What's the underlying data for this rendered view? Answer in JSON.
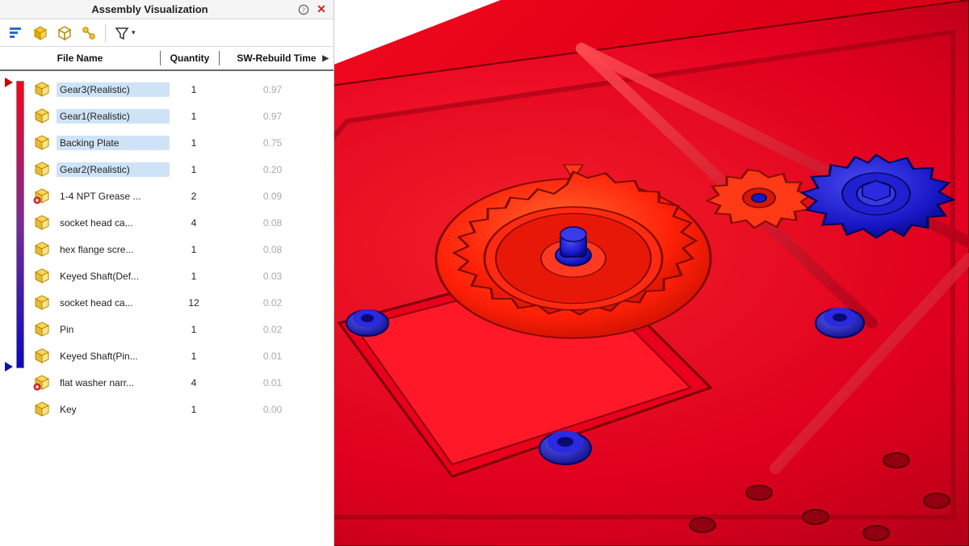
{
  "panel": {
    "title": "Assembly Visualization",
    "help_tooltip": "Help",
    "close_tooltip": "Close"
  },
  "toolbar": {
    "buttons": [
      {
        "name": "nested-view",
        "depicts": "stacked-bars"
      },
      {
        "name": "flat-view",
        "depicts": "cube"
      },
      {
        "name": "grouped-view",
        "depicts": "cube-outline"
      },
      {
        "name": "performance-view",
        "depicts": "link-cubes"
      }
    ],
    "filter_label": "Filter"
  },
  "columns": {
    "name": "File Name",
    "qty": "Quantity",
    "time": "SW-Rebuild Time",
    "sort_indicator": "▶"
  },
  "gradient": {
    "top_color": "#ff0018",
    "mid_color": "#7a2a9c",
    "bottom_color": "#0808c8",
    "marker_top_color": "#cc0000",
    "marker_bottom_color": "#1010aa"
  },
  "rows": [
    {
      "icon": "part",
      "name": "Gear3(Realistic)",
      "qty": "1",
      "time": "0.97",
      "selected": true
    },
    {
      "icon": "part",
      "name": "Gear1(Realistic)",
      "qty": "1",
      "time": "0.97",
      "selected": true
    },
    {
      "icon": "part",
      "name": "Backing Plate",
      "qty": "1",
      "time": "0.75",
      "selected": true
    },
    {
      "icon": "part",
      "name": "Gear2(Realistic)",
      "qty": "1",
      "time": "0.20",
      "selected": true
    },
    {
      "icon": "tbpart",
      "name": "1-4 NPT Grease ...",
      "qty": "2",
      "time": "0.09",
      "selected": false
    },
    {
      "icon": "part",
      "name": "socket head ca...",
      "qty": "4",
      "time": "0.08",
      "selected": false
    },
    {
      "icon": "part",
      "name": "hex flange scre...",
      "qty": "1",
      "time": "0.08",
      "selected": false
    },
    {
      "icon": "part",
      "name": "Keyed Shaft(Def...",
      "qty": "1",
      "time": "0.03",
      "selected": false
    },
    {
      "icon": "part",
      "name": "socket head ca...",
      "qty": "12",
      "time": "0.02",
      "selected": false
    },
    {
      "icon": "part",
      "name": "Pin",
      "qty": "1",
      "time": "0.02",
      "selected": false
    },
    {
      "icon": "part",
      "name": "Keyed Shaft(Pin...",
      "qty": "1",
      "time": "0.01",
      "selected": false
    },
    {
      "icon": "tbpart",
      "name": "flat washer narr...",
      "qty": "4",
      "time": "0.01",
      "selected": false
    },
    {
      "icon": "part",
      "name": "Key",
      "qty": "1",
      "time": "0.00",
      "selected": false
    }
  ],
  "viewport": {
    "background": "#ffffff",
    "plate_color": "#ff0a22",
    "plate_dark": "#c4001a",
    "plate_edge": "#6b0008",
    "gear_main_color": "#ff2a10",
    "gear_small_color": "#ff3a18",
    "blue_color": "#1414c8",
    "blue_dark": "#0a0a80",
    "bolt_color": "#1818d8"
  }
}
